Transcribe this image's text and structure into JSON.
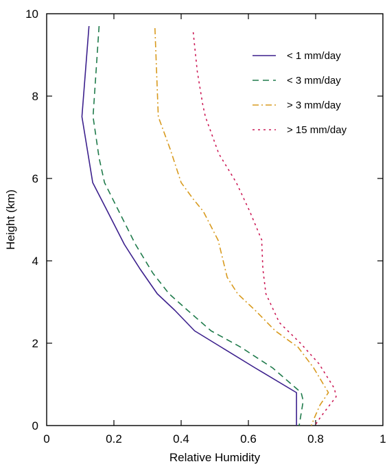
{
  "chart_data": {
    "type": "line",
    "title": "",
    "xlabel": "Relative Humidity",
    "ylabel": "Height (km)",
    "xlim": [
      0,
      1
    ],
    "ylim": [
      0,
      10
    ],
    "xticks": [
      0,
      0.2,
      0.4,
      0.6,
      0.8,
      1
    ],
    "xtick_labels": [
      "0",
      "0.2",
      "0.4",
      "0.6",
      "0.8",
      "1"
    ],
    "yticks": [
      0,
      2,
      4,
      6,
      8,
      10
    ],
    "ytick_labels": [
      "0",
      "2",
      "4",
      "6",
      "8",
      "10"
    ],
    "grid": false,
    "legend_position": "top-right",
    "series": [
      {
        "name": "< 1 mm/day",
        "color": "#3b1f8c",
        "dash": "solid",
        "points": [
          [
            0.126,
            9.7
          ],
          [
            0.105,
            7.5
          ],
          [
            0.137,
            5.9
          ],
          [
            0.181,
            5.2
          ],
          [
            0.231,
            4.4
          ],
          [
            0.278,
            3.8
          ],
          [
            0.329,
            3.2
          ],
          [
            0.381,
            2.8
          ],
          [
            0.44,
            2.3
          ],
          [
            0.52,
            1.9
          ],
          [
            0.62,
            1.4
          ],
          [
            0.743,
            0.8
          ],
          [
            0.743,
            0.0
          ]
        ]
      },
      {
        "name": "< 3 mm/day",
        "color": "#1e7a4a",
        "dash": "dashed",
        "points": [
          [
            0.156,
            9.7
          ],
          [
            0.138,
            7.5
          ],
          [
            0.156,
            6.5
          ],
          [
            0.172,
            5.9
          ],
          [
            0.215,
            5.2
          ],
          [
            0.264,
            4.4
          ],
          [
            0.316,
            3.7
          ],
          [
            0.364,
            3.2
          ],
          [
            0.419,
            2.8
          ],
          [
            0.489,
            2.3
          ],
          [
            0.578,
            1.9
          ],
          [
            0.672,
            1.4
          ],
          [
            0.757,
            0.8
          ],
          [
            0.763,
            0.6
          ],
          [
            0.751,
            0.0
          ]
        ]
      },
      {
        "name": "> 3 mm/day",
        "color": "#d89a1e",
        "dash": "dashdot",
        "points": [
          [
            0.322,
            9.65
          ],
          [
            0.332,
            7.5
          ],
          [
            0.368,
            6.7
          ],
          [
            0.4,
            5.9
          ],
          [
            0.436,
            5.5
          ],
          [
            0.466,
            5.2
          ],
          [
            0.51,
            4.5
          ],
          [
            0.537,
            3.6
          ],
          [
            0.568,
            3.2
          ],
          [
            0.62,
            2.8
          ],
          [
            0.68,
            2.3
          ],
          [
            0.748,
            1.9
          ],
          [
            0.794,
            1.4
          ],
          [
            0.838,
            0.8
          ],
          [
            0.813,
            0.5
          ],
          [
            0.797,
            0.2
          ],
          [
            0.787,
            0.0
          ]
        ]
      },
      {
        "name": "> 15 mm/day",
        "color": "#cc1a56",
        "dash": "dotted",
        "points": [
          [
            0.436,
            9.55
          ],
          [
            0.448,
            8.6
          ],
          [
            0.464,
            7.8
          ],
          [
            0.472,
            7.5
          ],
          [
            0.512,
            6.6
          ],
          [
            0.564,
            5.9
          ],
          [
            0.604,
            5.2
          ],
          [
            0.64,
            4.5
          ],
          [
            0.64,
            4.4
          ],
          [
            0.643,
            3.8
          ],
          [
            0.652,
            3.2
          ],
          [
            0.692,
            2.5
          ],
          [
            0.755,
            2.0
          ],
          [
            0.81,
            1.5
          ],
          [
            0.856,
            0.9
          ],
          [
            0.861,
            0.7
          ],
          [
            0.842,
            0.5
          ],
          [
            0.814,
            0.2
          ],
          [
            0.798,
            0.0
          ]
        ]
      }
    ]
  }
}
